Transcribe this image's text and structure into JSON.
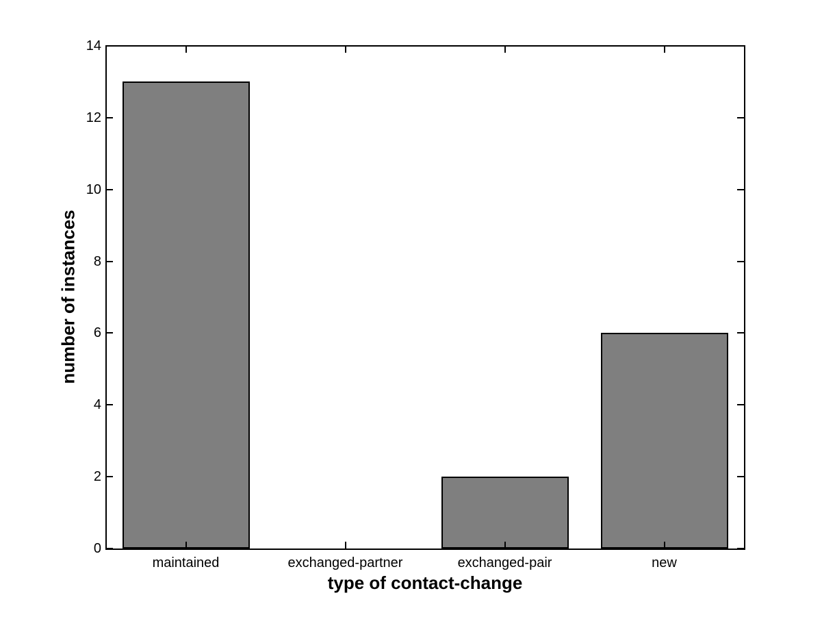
{
  "chart_data": {
    "type": "bar",
    "title": "",
    "categories": [
      "maintained",
      "exchanged-partner",
      "exchanged-pair",
      "new"
    ],
    "values": [
      13,
      0,
      2,
      6
    ],
    "xlabel": "type of contact-change",
    "ylabel": "number of instances",
    "ylim": [
      0,
      14
    ],
    "yticks": [
      0,
      2,
      4,
      6,
      8,
      10,
      12,
      14
    ],
    "bar_width_fraction": 0.8,
    "bar_color": "#7f7f7f",
    "bar_edge_color": "#000000",
    "axis_color": "#000000",
    "background_color": "#ffffff",
    "grid": false,
    "legend": null,
    "tick_direction": "in",
    "box": true
  }
}
